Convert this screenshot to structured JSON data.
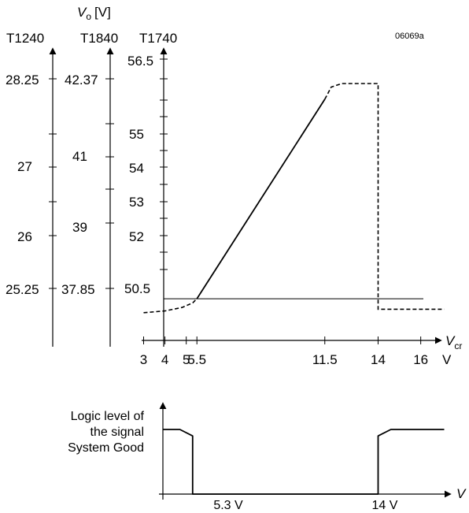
{
  "figure_id": "06069a",
  "chart_data": [
    {
      "type": "line",
      "ylabel_var": "V",
      "ylabel_sub": "o",
      "ylabel_unit": "[V]",
      "xlabel_var": "V",
      "xlabel_sub": "cr",
      "x_unit": "V",
      "xlim": [
        1.8,
        17.6
      ],
      "x_ticks": [
        3,
        4,
        5,
        5.5,
        11.5,
        14,
        16
      ],
      "y_axes": [
        {
          "name": "T1240",
          "ticks": [
            "28.25",
            "27",
            "26",
            "25.25"
          ]
        },
        {
          "name": "T1840",
          "ticks": [
            "42.37",
            "41",
            "39",
            "37.85"
          ]
        },
        {
          "name": "T1740",
          "ticks": [
            "56.5",
            "55",
            "54",
            "53",
            "52",
            "50.5"
          ],
          "ylim": [
            49.3,
            57.7
          ]
        }
      ],
      "reference_level": 50.5,
      "series": [
        {
          "style": "dashed",
          "x": [
            3,
            4,
            4.8,
            5.3,
            5.5
          ],
          "y": [
            50.1,
            50.15,
            50.25,
            50.38,
            50.5
          ]
        },
        {
          "style": "solid",
          "x": [
            5.5,
            11.5
          ],
          "y": [
            50.5,
            56.25
          ]
        },
        {
          "style": "dashed",
          "x": [
            11.5,
            11.8,
            12.3,
            13.95,
            14,
            14,
            17.1
          ],
          "y": [
            56.25,
            56.6,
            56.7,
            56.7,
            56.7,
            50.2,
            50.2
          ]
        }
      ]
    },
    {
      "type": "line",
      "ylabel": [
        "Logic level of",
        "the signal",
        "System Good"
      ],
      "x_labels": [
        "5.3 V",
        "14 V"
      ],
      "xlabel_var": "V",
      "series": [
        {
          "style": "solid",
          "x": [
            0,
            4.7,
            5.3,
            5.3,
            14,
            14,
            14.6,
            17.1
          ],
          "y": [
            1,
            1,
            0.9,
            0,
            0,
            0.9,
            1,
            1
          ]
        }
      ]
    }
  ]
}
